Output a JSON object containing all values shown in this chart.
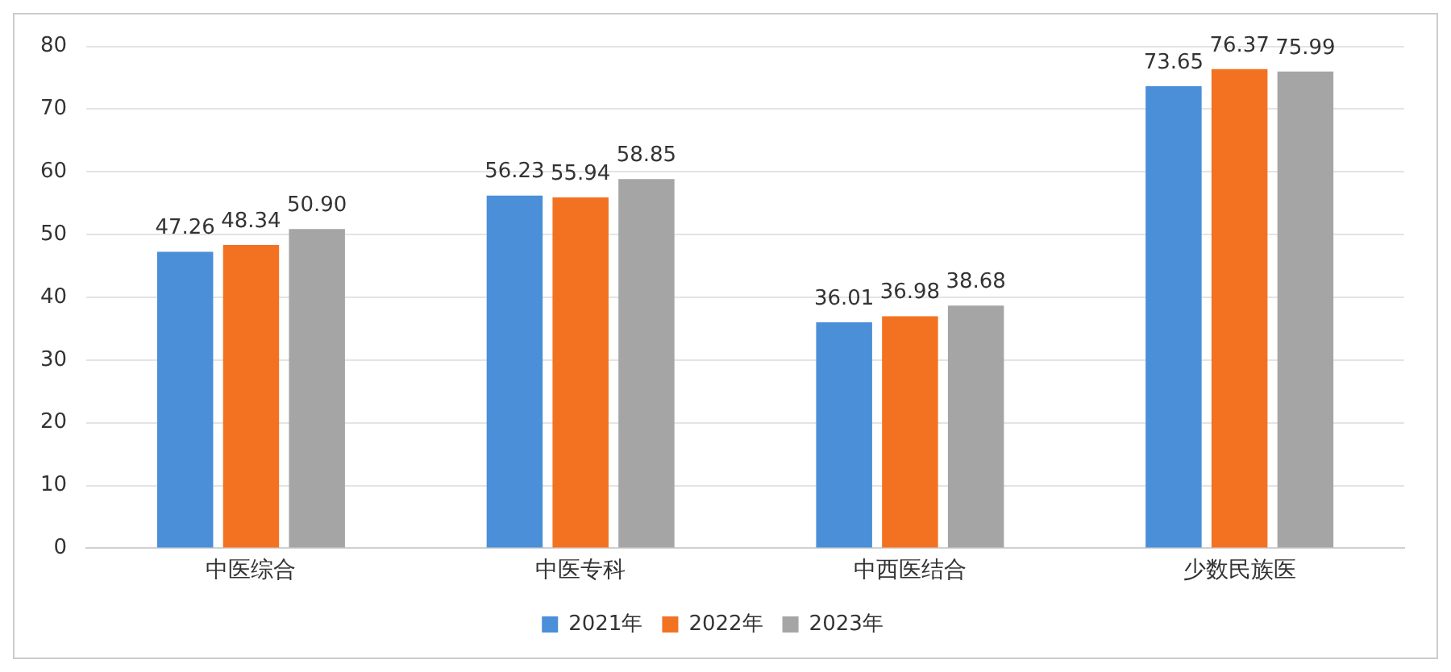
{
  "chart_data": {
    "type": "bar",
    "categories": [
      "中医综合",
      "中医专科",
      "中西医结合",
      "少数民族医"
    ],
    "series": [
      {
        "name": "2021年",
        "color": "#4a8fd8",
        "values": [
          47.26,
          56.23,
          36.01,
          73.65
        ],
        "value_labels": [
          "47.26",
          "56.23",
          "36.01",
          "73.65"
        ]
      },
      {
        "name": "2022年",
        "color": "#f27222",
        "values": [
          48.34,
          55.94,
          36.98,
          76.37
        ],
        "value_labels": [
          "48.34",
          "55.94",
          "36.98",
          "76.37"
        ]
      },
      {
        "name": "2023年",
        "color": "#a5a5a5",
        "values": [
          50.9,
          58.85,
          38.68,
          75.99
        ],
        "value_labels": [
          "50.90",
          "58.85",
          "38.68",
          "75.99"
        ]
      }
    ],
    "ylim": [
      0,
      80
    ],
    "yticks": [
      0,
      10,
      20,
      30,
      40,
      50,
      60,
      70,
      80
    ],
    "grid": "y",
    "legend": "bottom"
  }
}
